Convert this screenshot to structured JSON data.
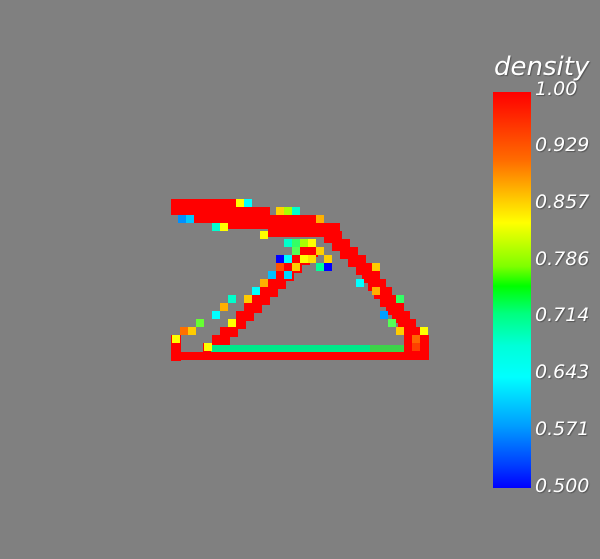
{
  "legend": {
    "title": "density",
    "ticks": [
      "1.00",
      "0.929",
      "0.857",
      "0.786",
      "0.714",
      "0.643",
      "0.571",
      "0.500"
    ],
    "range": [
      0.5,
      1.0
    ]
  },
  "colors": {
    "background": "#808080",
    "high": "#ff0000",
    "low": "#0000ff"
  }
}
